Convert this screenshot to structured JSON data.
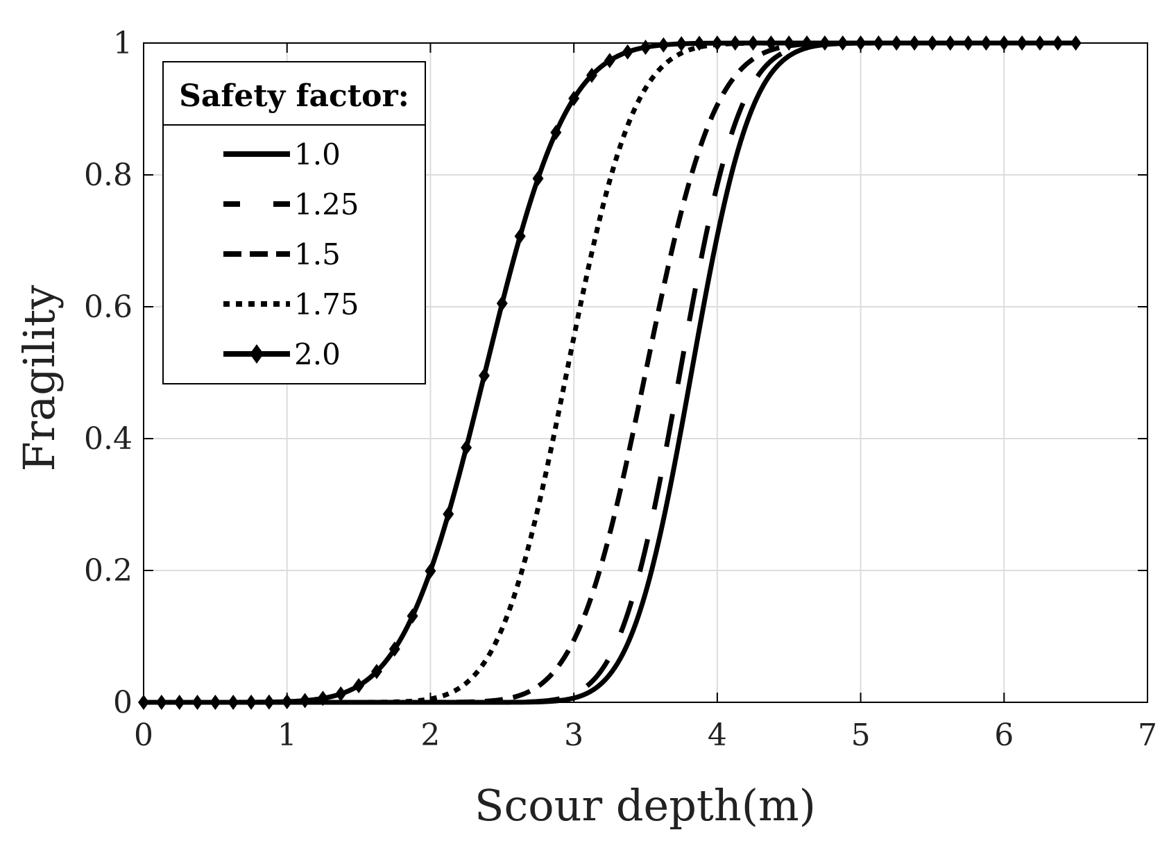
{
  "chart_data": {
    "type": "line",
    "title": "",
    "xlabel": "Scour depth(m)",
    "ylabel": "Fragility",
    "xlim": [
      0,
      7
    ],
    "ylim": [
      0,
      1
    ],
    "xticks": [
      0,
      1,
      2,
      3,
      4,
      5,
      6,
      7
    ],
    "yticks": [
      0,
      0.2,
      0.4,
      0.6,
      0.8,
      1
    ],
    "ytick_labels": [
      "0",
      "0.2",
      "0.4",
      "0.6",
      "0.8",
      "1"
    ],
    "grid": true,
    "legend": {
      "title": "Safety factor:",
      "position": "top-left"
    },
    "x_range": [
      0,
      6.5
    ],
    "curve_model": "normal CDF with given mean (m) and standard deviation (m)",
    "series": [
      {
        "name": "1.0",
        "style": "solid",
        "mean": 3.82,
        "std": 0.33
      },
      {
        "name": "1.25",
        "style": "longdash",
        "mean": 3.74,
        "std": 0.33
      },
      {
        "name": "1.5",
        "style": "dash",
        "mean": 3.5,
        "std": 0.38
      },
      {
        "name": "1.75",
        "style": "dot",
        "mean": 2.95,
        "std": 0.37
      },
      {
        "name": "2.0",
        "style": "diamond",
        "mean": 2.38,
        "std": 0.45
      }
    ]
  },
  "colors": {
    "line": "#000000",
    "grid": "#dcdcdc",
    "text": "#222222",
    "background": "#ffffff"
  }
}
